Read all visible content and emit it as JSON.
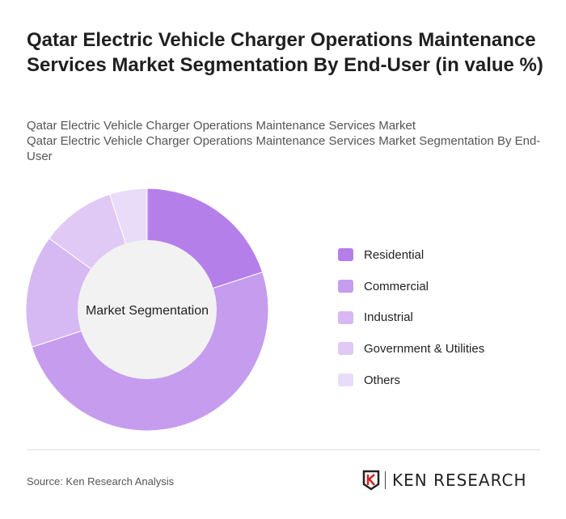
{
  "title": "Qatar Electric Vehicle Charger Operations Maintenance Services Market Segmentation By End-User (in value %)",
  "subtitle_lines": [
    "Qatar Electric Vehicle Charger Operations Maintenance Services Market",
    "Qatar Electric Vehicle Charger Operations Maintenance Services Market Segmentation By End-User"
  ],
  "source": "Source: Ken Research Analysis",
  "logo_text": "KEN RESEARCH",
  "chart_data": {
    "type": "pie",
    "variant": "donut",
    "center_label": "Market Segmentation",
    "legend_position": "right",
    "categories": [
      "Residential",
      "Commercial",
      "Industrial",
      "Government & Utilities",
      "Others"
    ],
    "values": [
      20,
      50,
      15,
      10,
      5
    ],
    "colors": [
      "#b57fea",
      "#c59cee",
      "#d6b8f3",
      "#e0c9f5",
      "#e9dcf8"
    ]
  }
}
